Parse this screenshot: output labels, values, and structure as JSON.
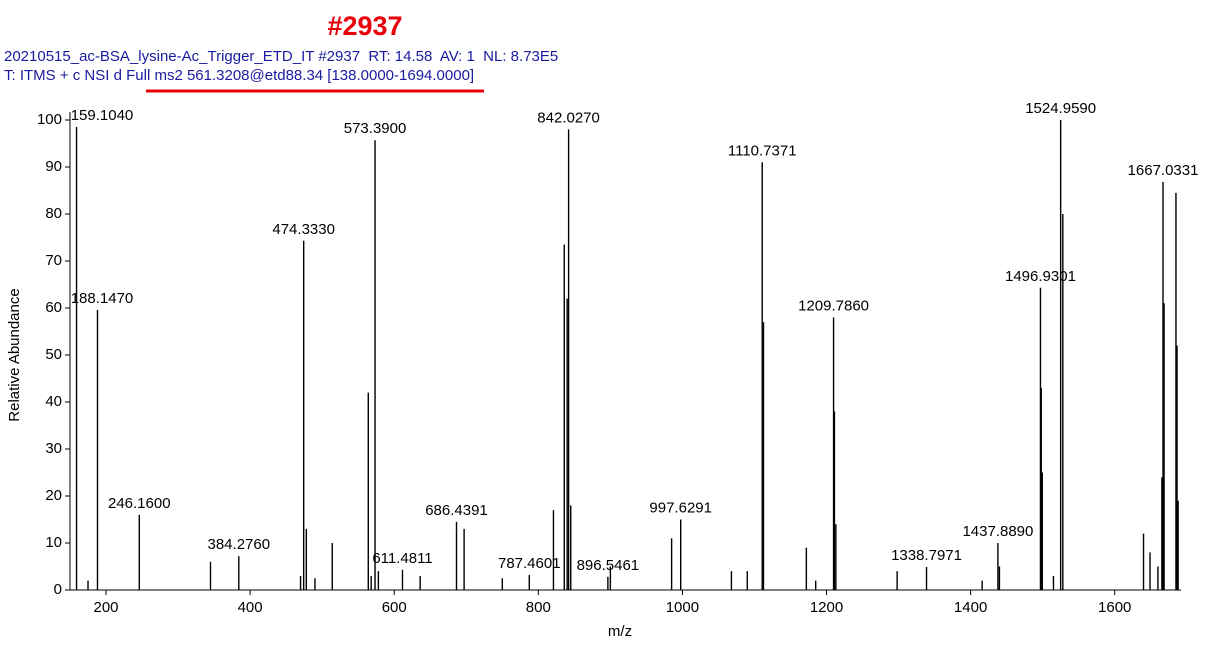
{
  "chart_data": {
    "type": "spectrum",
    "title": "#2937",
    "header_lines": [
      "20210515_ac-BSA_lysine-Ac_Trigger_ETD_IT #2937  RT: 14.58  AV: 1  NL: 8.73E5",
      "T: ITMS + c NSI d Full ms2 561.3208@etd88.34 [138.0000-1694.0000]"
    ],
    "x_label": "m/z",
    "y_label": "Relative Abundance",
    "color": "#000000",
    "x": [
      159.104,
      175,
      188.147,
      246.16,
      345,
      384.276,
      470,
      474.333,
      478,
      490,
      514,
      564,
      568,
      573.39,
      578,
      611.4811,
      636,
      686.4391,
      697,
      750,
      787.4601,
      821,
      836,
      840,
      842.027,
      845,
      896.5461,
      900,
      985,
      997.6291,
      1068,
      1090,
      1110.7371,
      1112.5,
      1172,
      1185,
      1209.786,
      1211,
      1213,
      1298,
      1338.7971,
      1416,
      1437.889,
      1440,
      1496.9301,
      1498,
      1499.5,
      1515,
      1524.959,
      1528,
      1640,
      1649,
      1660,
      1665.5,
      1667.0331,
      1668.5,
      1685,
      1686.5,
      1688
    ],
    "values": [
      98.5,
      2,
      59.6,
      16,
      6,
      7.2,
      3,
      74.3,
      13,
      2.5,
      10,
      42,
      3,
      95.7,
      4,
      4.3,
      3,
      14.5,
      13,
      2.5,
      3.2,
      17,
      73.5,
      62,
      98,
      18,
      2.8,
      5,
      11,
      15,
      4,
      4,
      91,
      57,
      9,
      2,
      58,
      38,
      14,
      4,
      4.9,
      2,
      10,
      5,
      64.3,
      43,
      25,
      3,
      100,
      80,
      12,
      8,
      5,
      24,
      86.8,
      61,
      84.5,
      52,
      19
    ],
    "x_labels": [
      "159.1040",
      null,
      "188.1470",
      "246.1600",
      null,
      "384.2760",
      null,
      "474.3330",
      null,
      null,
      null,
      null,
      null,
      "573.3900",
      null,
      "611.4811",
      null,
      "686.4391",
      null,
      null,
      "787.4601",
      null,
      null,
      null,
      "842.0270",
      null,
      "896.5461",
      null,
      null,
      "997.6291",
      null,
      null,
      "1110.7371",
      null,
      null,
      null,
      "1209.7860",
      null,
      null,
      null,
      "1338.7971",
      null,
      "1437.8890",
      null,
      "1496.9301",
      null,
      null,
      null,
      "1524.9590",
      null,
      null,
      null,
      null,
      null,
      "1667.0331",
      null,
      null,
      null,
      null
    ],
    "xlim": [
      150,
      1692
    ],
    "ylim": [
      0,
      100
    ],
    "xticks": [
      200,
      400,
      600,
      800,
      1000,
      1200,
      1400,
      1600
    ],
    "yticks": [
      0,
      10,
      20,
      30,
      40,
      50,
      60,
      70,
      80,
      90,
      100
    ]
  }
}
